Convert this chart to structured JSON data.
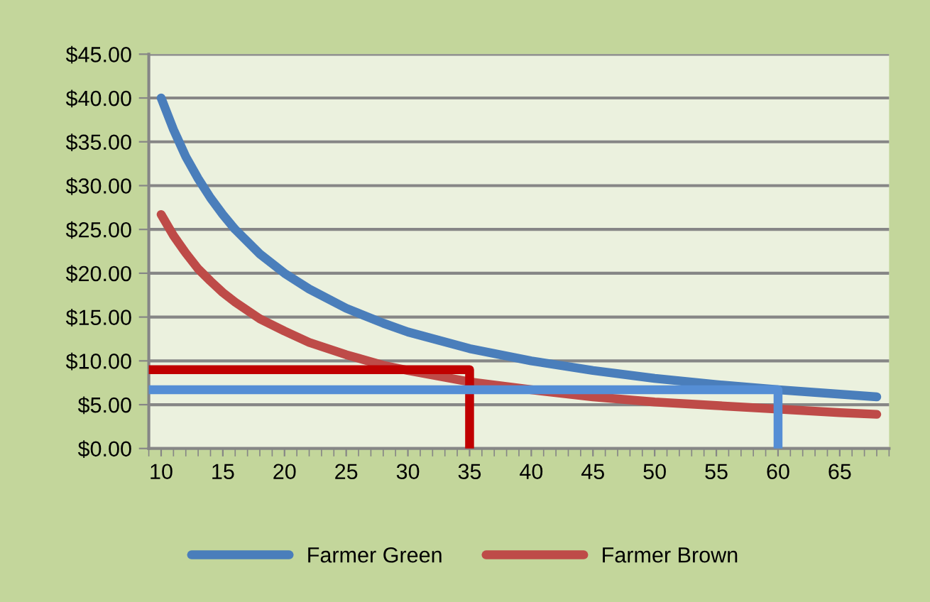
{
  "chart_data": {
    "type": "line",
    "xlim": [
      9,
      69
    ],
    "xticks": [
      10,
      15,
      20,
      25,
      30,
      35,
      40,
      45,
      50,
      55,
      60,
      65
    ],
    "ylim": [
      0,
      45
    ],
    "yticks": [
      {
        "value": 0,
        "label": "$0.00"
      },
      {
        "value": 5,
        "label": "$5.00"
      },
      {
        "value": 10,
        "label": "$10.00"
      },
      {
        "value": 15,
        "label": "$15.00"
      },
      {
        "value": 20,
        "label": "$20.00"
      },
      {
        "value": 25,
        "label": "$25.00"
      },
      {
        "value": 30,
        "label": "$30.00"
      },
      {
        "value": 35,
        "label": "$35.00"
      },
      {
        "value": 40,
        "label": "$40.00"
      },
      {
        "value": 45,
        "label": "$45.00"
      }
    ],
    "grid": "y",
    "legend": "bottom",
    "marker": "none",
    "line_style": "solid",
    "series": [
      {
        "name": "Farmer Green",
        "color": "#4a7ebb",
        "x": [
          10,
          11,
          12,
          13,
          14,
          15,
          16,
          18,
          20,
          22,
          25,
          28,
          30,
          35,
          40,
          45,
          50,
          55,
          60,
          65,
          68
        ],
        "values": [
          40,
          36.4,
          33.3,
          30.8,
          28.6,
          26.7,
          25,
          22.2,
          20,
          18.2,
          16,
          14.3,
          13.3,
          11.4,
          10,
          8.9,
          8,
          7.3,
          6.7,
          6.2,
          5.9
        ]
      },
      {
        "name": "Farmer Brown",
        "color": "#be4b48",
        "x": [
          10,
          11,
          12,
          13,
          14,
          15,
          16,
          18,
          20,
          22,
          25,
          28,
          30,
          35,
          40,
          45,
          50,
          55,
          60,
          65,
          68
        ],
        "values": [
          26.7,
          24.3,
          22.3,
          20.5,
          19.1,
          17.8,
          16.7,
          14.8,
          13.4,
          12.1,
          10.7,
          9.5,
          8.9,
          7.6,
          6.7,
          5.9,
          5.3,
          4.9,
          4.5,
          4.1,
          3.9
        ]
      },
      {
        "color": "#c00000",
        "x": [
          9,
          35,
          35
        ],
        "values": [
          9,
          9,
          0
        ]
      },
      {
        "color": "#558ed5",
        "x": [
          9,
          60,
          60
        ],
        "values": [
          6.7,
          6.7,
          0
        ]
      }
    ]
  }
}
